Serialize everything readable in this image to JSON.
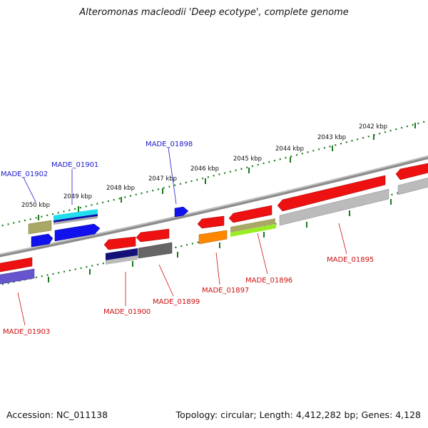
{
  "title": "Alteromonas macleodii 'Deep ecotype', complete genome",
  "footer": {
    "accession": "Accession: NC_011138",
    "topology": "Topology: circular; Length: 4,412,282 bp; Genes: 4,128"
  },
  "colors": {
    "backbone": "#8c8c8c",
    "tick": "#1a7a1a",
    "forward_label": "#1a1acc",
    "reverse_label": "#cc1111",
    "red": "#ee1111",
    "blue": "#1111ee",
    "grey": "#b4b4b4",
    "olive": "#aaa866",
    "cyan": "#22ddee",
    "navy": "#111177",
    "darkgrey": "#666666",
    "orange": "#ff8800",
    "lime": "#99ee22",
    "purple": "#6655cc"
  },
  "kbp_labels": [
    "2042 kbp",
    "2043 kbp",
    "2044 kbp",
    "2045 kbp",
    "2046 kbp",
    "2047 kbp",
    "2048 kbp",
    "2049 kbp",
    "2050 kbp"
  ],
  "gene_labels": [
    {
      "name": "MADE_01902",
      "strand": "forward"
    },
    {
      "name": "MADE_01901",
      "strand": "forward"
    },
    {
      "name": "MADE_01898",
      "strand": "forward"
    },
    {
      "name": "MADE_01895",
      "strand": "reverse"
    },
    {
      "name": "MADE_01896",
      "strand": "reverse"
    },
    {
      "name": "MADE_01897",
      "strand": "reverse"
    },
    {
      "name": "MADE_01899",
      "strand": "reverse"
    },
    {
      "name": "MADE_01900",
      "strand": "reverse"
    },
    {
      "name": "MADE_01903",
      "strand": "reverse"
    }
  ]
}
